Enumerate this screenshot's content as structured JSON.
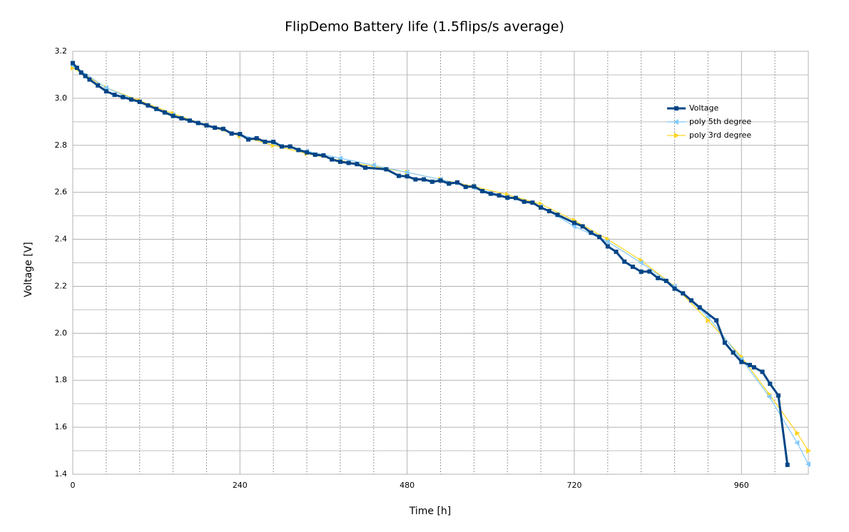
{
  "chart_data": {
    "type": "line",
    "title": "FlipDemo Battery life (1.5flips/s average)",
    "x_label": "Time [h]",
    "y_label": "Voltage [V]",
    "xlim": [
      0,
      1056
    ],
    "xticks": [
      0,
      240,
      480,
      720,
      960
    ],
    "xminorticks": [
      48,
      96,
      144,
      192,
      288,
      336,
      384,
      432,
      528,
      576,
      624,
      672,
      768,
      816,
      864,
      912,
      1008
    ],
    "ylim": [
      1.4,
      3.2
    ],
    "yticks": [
      {
        "value": 1.4,
        "label": "1.4"
      },
      {
        "value": 1.6,
        "label": "1.6"
      },
      {
        "value": 1.8,
        "label": "1.8"
      },
      {
        "value": 2.0,
        "label": "2.0"
      },
      {
        "value": 2.2,
        "label": "2.2"
      },
      {
        "value": 2.4,
        "label": "2.4"
      },
      {
        "value": 2.6,
        "label": "2.6"
      },
      {
        "value": 2.8,
        "label": "2.8"
      },
      {
        "value": 3.0,
        "label": "3.0"
      },
      {
        "value": 3.2,
        "label": "3.2"
      }
    ],
    "yminorticks": [
      1.5,
      1.7,
      1.9,
      2.1,
      2.3,
      2.5,
      2.7,
      2.9,
      3.1
    ],
    "grid": true,
    "legend": "top-right",
    "series": [
      {
        "name": "Voltage",
        "color": "#004586",
        "marker": "square",
        "width": 3,
        "x": [
          0,
          6,
          12,
          18,
          24,
          36,
          48,
          60,
          72,
          84,
          96,
          108,
          120,
          132,
          144,
          156,
          168,
          180,
          192,
          204,
          216,
          228,
          240,
          252,
          264,
          276,
          288,
          300,
          312,
          324,
          336,
          348,
          360,
          372,
          384,
          396,
          408,
          420,
          450,
          468,
          480,
          492,
          504,
          516,
          528,
          540,
          552,
          564,
          576,
          588,
          600,
          612,
          624,
          636,
          648,
          660,
          672,
          684,
          696,
          720,
          732,
          744,
          756,
          768,
          780,
          792,
          804,
          816,
          828,
          840,
          852,
          864,
          876,
          888,
          900,
          924,
          936,
          948,
          960,
          972,
          978,
          990,
          1001,
          1013,
          1026
        ],
        "values": [
          3.15,
          3.13,
          3.11,
          3.095,
          3.08,
          3.055,
          3.03,
          3.015,
          3.005,
          2.995,
          2.985,
          2.97,
          2.955,
          2.94,
          2.925,
          2.915,
          2.905,
          2.895,
          2.885,
          2.875,
          2.87,
          2.85,
          2.848,
          2.825,
          2.83,
          2.815,
          2.815,
          2.795,
          2.795,
          2.78,
          2.77,
          2.76,
          2.757,
          2.74,
          2.73,
          2.725,
          2.72,
          2.705,
          2.698,
          2.67,
          2.668,
          2.655,
          2.655,
          2.645,
          2.65,
          2.637,
          2.642,
          2.623,
          2.625,
          2.605,
          2.594,
          2.587,
          2.577,
          2.576,
          2.56,
          2.556,
          2.535,
          2.52,
          2.504,
          2.47,
          2.455,
          2.428,
          2.41,
          2.37,
          2.347,
          2.305,
          2.283,
          2.262,
          2.263,
          2.235,
          2.223,
          2.19,
          2.17,
          2.14,
          2.11,
          2.055,
          1.96,
          1.918,
          1.878,
          1.865,
          1.855,
          1.836,
          1.785,
          1.735,
          1.44
        ]
      },
      {
        "name": "poly 5th degree",
        "color": "#83caff",
        "marker": "triangle-left",
        "width": 1.2,
        "x": [
          0,
          48,
          96,
          144,
          192,
          240,
          288,
          336,
          384,
          432,
          480,
          528,
          576,
          624,
          672,
          720,
          768,
          816,
          864,
          912,
          960,
          1000,
          1040,
          1056
        ],
        "values": [
          3.14,
          3.045,
          2.985,
          2.93,
          2.885,
          2.845,
          2.81,
          2.775,
          2.745,
          2.715,
          2.685,
          2.655,
          2.62,
          2.58,
          2.54,
          2.455,
          2.39,
          2.3,
          2.2,
          2.07,
          1.89,
          1.73,
          1.534,
          1.443
        ]
      },
      {
        "name": "poly 3rd degree",
        "color": "#ffd320",
        "marker": "triangle-right",
        "width": 1.2,
        "x": [
          0,
          48,
          96,
          144,
          192,
          240,
          288,
          336,
          384,
          432,
          480,
          528,
          576,
          624,
          672,
          720,
          768,
          816,
          864,
          912,
          960,
          1000,
          1040,
          1056
        ],
        "values": [
          3.13,
          3.045,
          2.99,
          2.935,
          2.885,
          2.84,
          2.8,
          2.765,
          2.735,
          2.71,
          2.685,
          2.655,
          2.625,
          2.59,
          2.55,
          2.48,
          2.4,
          2.31,
          2.2,
          2.055,
          1.9,
          1.74,
          1.575,
          1.5
        ]
      }
    ]
  }
}
